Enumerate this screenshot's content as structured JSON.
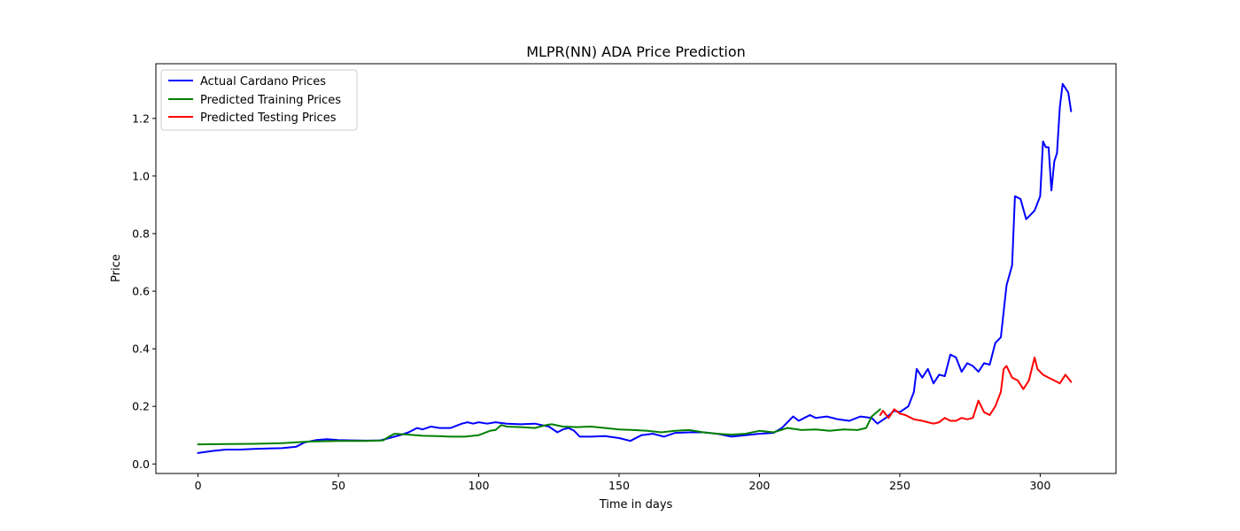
{
  "chart_data": {
    "type": "line",
    "title": "MLPR(NN) ADA Price Prediction",
    "xlabel": "Time in days",
    "ylabel": "Price",
    "xlim": [
      -15,
      327
    ],
    "ylim": [
      -0.033,
      1.39
    ],
    "xticks": [
      0,
      50,
      100,
      150,
      200,
      250,
      300
    ],
    "yticks": [
      0.0,
      0.2,
      0.4,
      0.6,
      0.8,
      1.0,
      1.2
    ],
    "ytick_labels": [
      "0.0",
      "0.2",
      "0.4",
      "0.6",
      "0.8",
      "1.0",
      "1.2"
    ],
    "grid": false,
    "legend_position": "top-left",
    "series": [
      {
        "name": "Actual Cardano Prices",
        "color": "#0000ff",
        "points": [
          [
            0,
            0.038
          ],
          [
            5,
            0.045
          ],
          [
            10,
            0.05
          ],
          [
            15,
            0.05
          ],
          [
            20,
            0.052
          ],
          [
            25,
            0.054
          ],
          [
            30,
            0.055
          ],
          [
            35,
            0.06
          ],
          [
            38,
            0.075
          ],
          [
            42,
            0.083
          ],
          [
            46,
            0.086
          ],
          [
            50,
            0.083
          ],
          [
            55,
            0.082
          ],
          [
            60,
            0.081
          ],
          [
            65,
            0.082
          ],
          [
            70,
            0.095
          ],
          [
            72,
            0.1
          ],
          [
            75,
            0.11
          ],
          [
            78,
            0.125
          ],
          [
            80,
            0.12
          ],
          [
            83,
            0.13
          ],
          [
            86,
            0.125
          ],
          [
            90,
            0.125
          ],
          [
            94,
            0.14
          ],
          [
            96,
            0.145
          ],
          [
            98,
            0.14
          ],
          [
            100,
            0.145
          ],
          [
            103,
            0.14
          ],
          [
            106,
            0.145
          ],
          [
            110,
            0.14
          ],
          [
            115,
            0.138
          ],
          [
            120,
            0.14
          ],
          [
            125,
            0.13
          ],
          [
            128,
            0.11
          ],
          [
            130,
            0.12
          ],
          [
            132,
            0.125
          ],
          [
            134,
            0.115
          ],
          [
            136,
            0.095
          ],
          [
            140,
            0.095
          ],
          [
            145,
            0.097
          ],
          [
            150,
            0.09
          ],
          [
            154,
            0.08
          ],
          [
            158,
            0.1
          ],
          [
            162,
            0.105
          ],
          [
            166,
            0.095
          ],
          [
            170,
            0.108
          ],
          [
            175,
            0.11
          ],
          [
            180,
            0.11
          ],
          [
            185,
            0.105
          ],
          [
            190,
            0.095
          ],
          [
            195,
            0.1
          ],
          [
            200,
            0.105
          ],
          [
            205,
            0.108
          ],
          [
            208,
            0.125
          ],
          [
            212,
            0.165
          ],
          [
            214,
            0.15
          ],
          [
            216,
            0.16
          ],
          [
            218,
            0.17
          ],
          [
            220,
            0.16
          ],
          [
            224,
            0.165
          ],
          [
            228,
            0.155
          ],
          [
            232,
            0.15
          ],
          [
            236,
            0.165
          ],
          [
            240,
            0.16
          ],
          [
            242,
            0.14
          ],
          [
            245,
            0.16
          ],
          [
            248,
            0.185
          ],
          [
            250,
            0.18
          ],
          [
            253,
            0.2
          ],
          [
            255,
            0.25
          ],
          [
            256,
            0.33
          ],
          [
            258,
            0.3
          ],
          [
            260,
            0.33
          ],
          [
            262,
            0.28
          ],
          [
            264,
            0.31
          ],
          [
            266,
            0.305
          ],
          [
            268,
            0.38
          ],
          [
            270,
            0.37
          ],
          [
            272,
            0.32
          ],
          [
            274,
            0.35
          ],
          [
            276,
            0.34
          ],
          [
            278,
            0.32
          ],
          [
            280,
            0.35
          ],
          [
            282,
            0.345
          ],
          [
            284,
            0.42
          ],
          [
            286,
            0.44
          ],
          [
            288,
            0.62
          ],
          [
            290,
            0.69
          ],
          [
            291,
            0.93
          ],
          [
            293,
            0.92
          ],
          [
            295,
            0.85
          ],
          [
            298,
            0.88
          ],
          [
            300,
            0.93
          ],
          [
            301,
            1.12
          ],
          [
            302,
            1.1
          ],
          [
            303,
            1.1
          ],
          [
            304,
            0.95
          ],
          [
            305,
            1.05
          ],
          [
            306,
            1.08
          ],
          [
            307,
            1.24
          ],
          [
            308,
            1.32
          ],
          [
            310,
            1.29
          ],
          [
            311,
            1.225
          ]
        ]
      },
      {
        "name": "Predicted Training Prices",
        "color": "#008000",
        "points": [
          [
            0,
            0.068
          ],
          [
            10,
            0.069
          ],
          [
            20,
            0.07
          ],
          [
            30,
            0.072
          ],
          [
            40,
            0.078
          ],
          [
            50,
            0.08
          ],
          [
            60,
            0.08
          ],
          [
            66,
            0.082
          ],
          [
            68,
            0.095
          ],
          [
            70,
            0.105
          ],
          [
            75,
            0.102
          ],
          [
            80,
            0.098
          ],
          [
            85,
            0.097
          ],
          [
            90,
            0.095
          ],
          [
            95,
            0.095
          ],
          [
            100,
            0.1
          ],
          [
            104,
            0.115
          ],
          [
            106,
            0.118
          ],
          [
            108,
            0.135
          ],
          [
            110,
            0.13
          ],
          [
            115,
            0.128
          ],
          [
            120,
            0.125
          ],
          [
            124,
            0.135
          ],
          [
            126,
            0.138
          ],
          [
            130,
            0.13
          ],
          [
            135,
            0.128
          ],
          [
            140,
            0.13
          ],
          [
            145,
            0.125
          ],
          [
            150,
            0.12
          ],
          [
            155,
            0.118
          ],
          [
            160,
            0.115
          ],
          [
            165,
            0.11
          ],
          [
            170,
            0.115
          ],
          [
            175,
            0.118
          ],
          [
            180,
            0.11
          ],
          [
            185,
            0.105
          ],
          [
            190,
            0.102
          ],
          [
            195,
            0.105
          ],
          [
            200,
            0.115
          ],
          [
            205,
            0.11
          ],
          [
            210,
            0.125
          ],
          [
            215,
            0.118
          ],
          [
            220,
            0.12
          ],
          [
            225,
            0.115
          ],
          [
            230,
            0.12
          ],
          [
            235,
            0.118
          ],
          [
            238,
            0.125
          ],
          [
            240,
            0.165
          ],
          [
            243,
            0.19
          ]
        ]
      },
      {
        "name": "Predicted Testing Prices",
        "color": "#ff0000",
        "points": [
          [
            243,
            0.17
          ],
          [
            244,
            0.185
          ],
          [
            246,
            0.16
          ],
          [
            248,
            0.19
          ],
          [
            250,
            0.175
          ],
          [
            252,
            0.17
          ],
          [
            255,
            0.155
          ],
          [
            258,
            0.15
          ],
          [
            260,
            0.145
          ],
          [
            262,
            0.14
          ],
          [
            264,
            0.145
          ],
          [
            266,
            0.16
          ],
          [
            268,
            0.15
          ],
          [
            270,
            0.15
          ],
          [
            272,
            0.16
          ],
          [
            274,
            0.155
          ],
          [
            276,
            0.16
          ],
          [
            278,
            0.22
          ],
          [
            280,
            0.18
          ],
          [
            282,
            0.17
          ],
          [
            284,
            0.2
          ],
          [
            286,
            0.25
          ],
          [
            287,
            0.33
          ],
          [
            288,
            0.34
          ],
          [
            290,
            0.3
          ],
          [
            292,
            0.29
          ],
          [
            294,
            0.26
          ],
          [
            296,
            0.29
          ],
          [
            298,
            0.37
          ],
          [
            299,
            0.33
          ],
          [
            301,
            0.31
          ],
          [
            303,
            0.3
          ],
          [
            305,
            0.29
          ],
          [
            307,
            0.28
          ],
          [
            309,
            0.31
          ],
          [
            311,
            0.285
          ]
        ]
      }
    ]
  }
}
